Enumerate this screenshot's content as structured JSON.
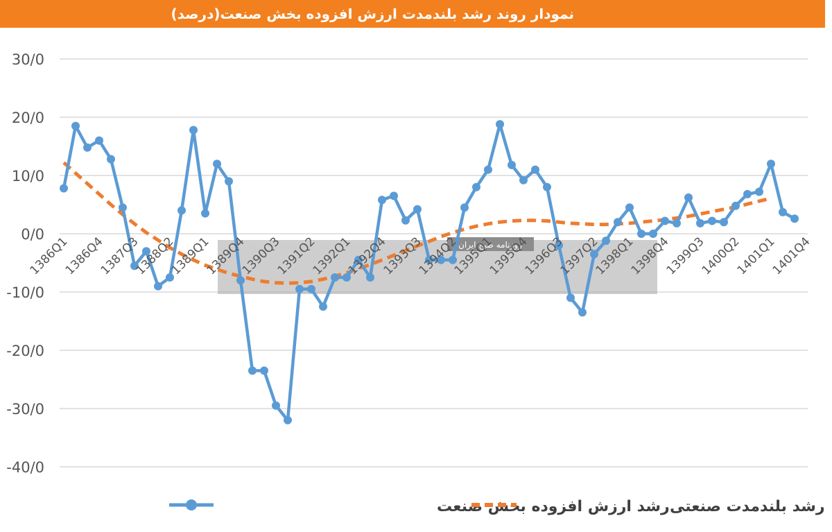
{
  "title": "نمودار روند رشد بلندمدت ارزش افزوده بخش صنعت(درصد)",
  "watermark": "روزنامه صبح ایران",
  "chart_data": {
    "type": "line",
    "title": "نمودار روند رشد بلندمدت ارزش افزوده بخش صنعت(درصد)",
    "xlabel": "",
    "ylabel": "",
    "ylim": [
      -40,
      30
    ],
    "yticks": [
      "30/0",
      "20/0",
      "10/0",
      "0/0",
      "-10/0",
      "-20/0",
      "-30/0",
      "-40/0"
    ],
    "ytick_values": [
      30,
      20,
      10,
      0,
      -10,
      -20,
      -30,
      -40
    ],
    "xtick_labels": [
      "1386Q1",
      "1386Q4",
      "1387Q3",
      "1388Q2",
      "1389Q1",
      "1389Q4",
      "1390Q3",
      "1391Q2",
      "1392Q1",
      "1392Q4",
      "1393Q3",
      "1394Q2",
      "1395Q1",
      "1395Q4",
      "1396Q3",
      "1397Q2",
      "1398Q1",
      "1398Q4",
      "1399Q3",
      "1400Q2",
      "1401Q1",
      "1401Q4"
    ],
    "grid": true,
    "legend": "bottom",
    "colors": {
      "actual": "#5b9bd5",
      "trend": "#ed7d31",
      "grid": "#d9d9d9"
    },
    "series": [
      {
        "name": "رشد ارزش افزوده بخش صنعت",
        "style": "solid-markers",
        "values": [
          7.8,
          18.5,
          14.8,
          16.0,
          12.8,
          4.5,
          -5.5,
          -3.0,
          -9.0,
          -7.5,
          4.0,
          17.8,
          3.5,
          12.0,
          9.0,
          -8.0,
          -23.5,
          -23.5,
          -29.5,
          -32.0,
          -9.5,
          -9.5,
          -12.5,
          -7.5,
          -7.5,
          -4.5,
          -7.5,
          5.8,
          6.5,
          2.3,
          4.2,
          -4.5,
          -4.5,
          -4.5,
          4.5,
          8.0,
          11.0,
          18.8,
          11.8,
          9.2,
          11.0,
          8.0,
          -2.0,
          -11.0,
          -13.5,
          -3.5,
          -1.2,
          2.0,
          4.5,
          0.0,
          0.0,
          2.2,
          1.8,
          6.2,
          1.8,
          2.2,
          2.0,
          4.8,
          6.8,
          7.2,
          12.0,
          3.7,
          2.6
        ]
      },
      {
        "name": "رشد بلندمدت صنعتی",
        "style": "dashed",
        "values": [
          12.2,
          10.4,
          8.6,
          6.8,
          5.0,
          3.3,
          1.7,
          0.2,
          -1.1,
          -2.4,
          -3.5,
          -4.5,
          -5.4,
          -6.1,
          -6.8,
          -7.3,
          -7.8,
          -8.2,
          -8.4,
          -8.5,
          -8.4,
          -8.2,
          -7.8,
          -7.3,
          -6.7,
          -6.0,
          -5.3,
          -4.5,
          -3.7,
          -2.9,
          -2.1,
          -1.3,
          -0.5,
          0.2,
          0.8,
          1.3,
          1.7,
          2.0,
          2.2,
          2.3,
          2.3,
          2.2,
          2.0,
          1.8,
          1.7,
          1.6,
          1.6,
          1.7,
          1.8,
          2.0,
          2.2,
          2.4,
          2.7,
          3.0,
          3.4,
          3.8,
          4.2,
          4.6,
          5.1,
          5.6,
          6.1
        ]
      }
    ],
    "legend_entries": [
      {
        "label": "رشد ارزش افزوده بخش صنعت",
        "style": "solid-markers"
      },
      {
        "label": "رشد بلندمدت صنعتی",
        "style": "dashed"
      }
    ]
  }
}
